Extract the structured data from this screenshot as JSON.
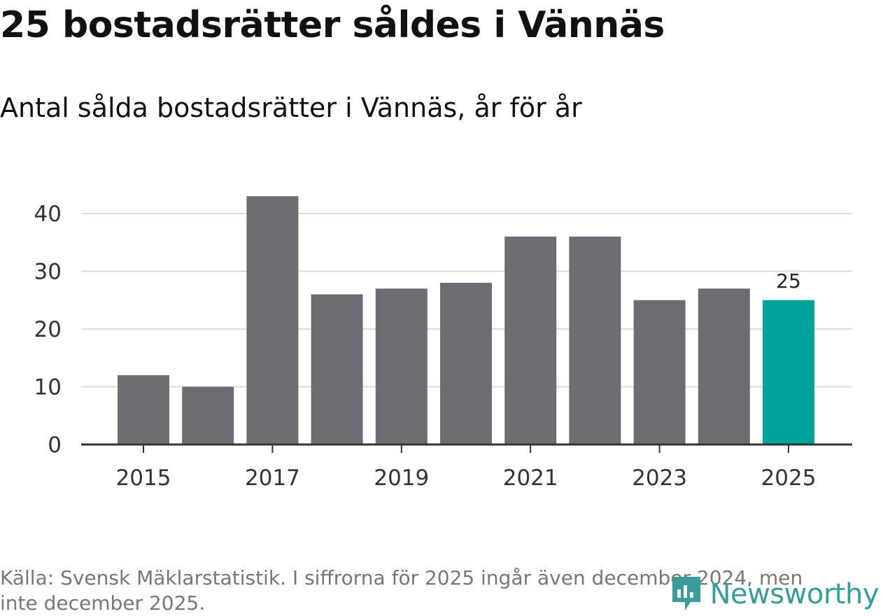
{
  "header": {
    "title": "25 bostadsrätter såldes i Vännäs",
    "subtitle": "Antal sålda bostadsrätter i Vännäs, år för år"
  },
  "chart_data": {
    "type": "bar",
    "title": "25 bostadsrätter såldes i Vännäs",
    "subtitle": "Antal sålda bostadsrätter i Vännäs, år för år",
    "xlabel": "",
    "ylabel": "",
    "categories": [
      "2015",
      "2016",
      "2017",
      "2018",
      "2019",
      "2020",
      "2021",
      "2022",
      "2023",
      "2024",
      "2025"
    ],
    "values": [
      12,
      10,
      43,
      26,
      27,
      28,
      36,
      36,
      25,
      27,
      25
    ],
    "x_tick_labels": [
      "2015",
      "2017",
      "2019",
      "2021",
      "2023",
      "2025"
    ],
    "y_ticks": [
      0,
      10,
      20,
      30,
      40
    ],
    "ylim": [
      0,
      45
    ],
    "grid": true,
    "bar_color": "#6e6d73",
    "highlight_color": "#00a39a",
    "highlight_index": 10,
    "data_labels": [
      {
        "index": 10,
        "text": "25"
      }
    ]
  },
  "footer": {
    "source": "Källa: Svensk Mäklarstatistik. I siffrorna för 2025 ingår även december 2024, men inte december 2025.",
    "brand": "Newsworthy",
    "brand_icon": "newsworthy-logo-icon",
    "brand_color": "#3a9e98"
  }
}
